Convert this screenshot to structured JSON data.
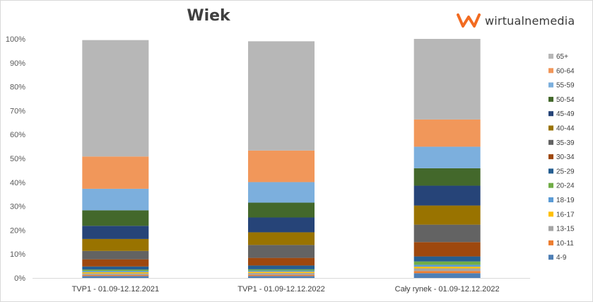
{
  "brand": {
    "name": "wirtualnemedia",
    "logo_color": "#f26b21"
  },
  "chart_data": {
    "type": "bar",
    "stacked": true,
    "title": "Wiek",
    "xlabel": "",
    "ylabel": "",
    "ylim": [
      0,
      100
    ],
    "y_ticks": [
      "0%",
      "10%",
      "20%",
      "30%",
      "40%",
      "50%",
      "60%",
      "70%",
      "80%",
      "90%",
      "100%"
    ],
    "grid": false,
    "legend_position": "right",
    "categories": [
      "TVP1 - 01.09-12.12.2021",
      "TVP1 - 01.09-12.12.2022",
      "Cały rynek - 01.09-12.12.2022"
    ],
    "series": [
      {
        "name": "4-9",
        "color": "#4e7fb5",
        "values": [
          0.8,
          0.8,
          2.0
        ]
      },
      {
        "name": "10-11",
        "color": "#ed7d31",
        "values": [
          0.4,
          0.5,
          0.9
        ]
      },
      {
        "name": "13-15",
        "color": "#a5a5a5",
        "values": [
          0.7,
          0.8,
          1.1
        ]
      },
      {
        "name": "16-17",
        "color": "#ffc000",
        "values": [
          0.5,
          0.5,
          0.7
        ]
      },
      {
        "name": "18-19",
        "color": "#5b9bd5",
        "values": [
          0.5,
          0.5,
          0.8
        ]
      },
      {
        "name": "20-24",
        "color": "#70ad47",
        "values": [
          0.6,
          0.5,
          1.4
        ]
      },
      {
        "name": "25-29",
        "color": "#255e91",
        "values": [
          1.3,
          1.6,
          2.1
        ]
      },
      {
        "name": "30-34",
        "color": "#9e480e",
        "values": [
          3.0,
          3.2,
          6.0
        ]
      },
      {
        "name": "35-39",
        "color": "#636363",
        "values": [
          3.5,
          5.4,
          7.3
        ]
      },
      {
        "name": "40-44",
        "color": "#997300",
        "values": [
          5.0,
          5.3,
          8.0
        ]
      },
      {
        "name": "45-49",
        "color": "#264478",
        "values": [
          5.5,
          6.2,
          8.3
        ]
      },
      {
        "name": "50-54",
        "color": "#43682b",
        "values": [
          6.5,
          6.2,
          7.3
        ]
      },
      {
        "name": "55-59",
        "color": "#7cafdd",
        "values": [
          9.0,
          8.6,
          9.0
        ]
      },
      {
        "name": "60-64",
        "color": "#f1975a",
        "values": [
          13.5,
          13.2,
          11.4
        ]
      },
      {
        "name": "65+",
        "color": "#b7b7b7",
        "values": [
          48.7,
          45.7,
          33.7
        ]
      }
    ]
  }
}
